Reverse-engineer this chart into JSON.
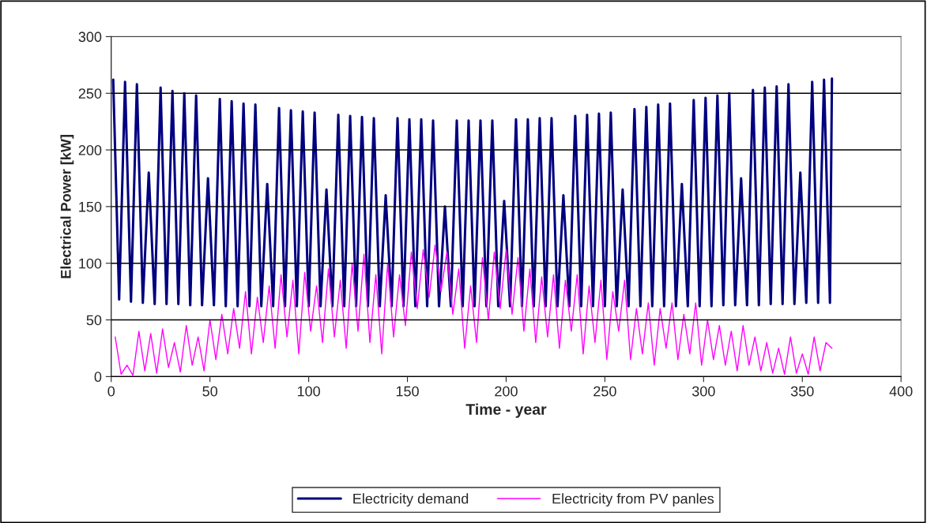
{
  "chart_data": {
    "type": "line",
    "xlabel": "Time - year",
    "ylabel": "Electrical Power [kW]",
    "xlim": [
      0,
      400
    ],
    "xticks": [
      0,
      50,
      100,
      150,
      200,
      250,
      300,
      350,
      400
    ],
    "ylim": [
      0,
      300
    ],
    "yticks": [
      0,
      50,
      100,
      150,
      200,
      250,
      300
    ],
    "grid": "y",
    "legend": "bottom",
    "marker": "none",
    "line_style": "solid",
    "series": [
      {
        "name": "Electricity demand",
        "color": "#000080",
        "x": [
          1,
          4,
          7,
          10,
          13,
          16,
          19,
          22,
          25,
          28,
          31,
          34,
          37,
          40,
          43,
          46,
          49,
          52,
          55,
          58,
          61,
          64,
          67,
          70,
          73,
          76,
          79,
          82,
          85,
          88,
          91,
          94,
          97,
          100,
          103,
          106,
          109,
          112,
          115,
          118,
          121,
          124,
          127,
          130,
          133,
          136,
          139,
          142,
          145,
          148,
          151,
          154,
          157,
          160,
          163,
          166,
          169,
          172,
          175,
          178,
          181,
          184,
          187,
          190,
          193,
          196,
          199,
          202,
          205,
          208,
          211,
          214,
          217,
          220,
          223,
          226,
          229,
          232,
          235,
          238,
          241,
          244,
          247,
          250,
          253,
          256,
          259,
          262,
          265,
          268,
          271,
          274,
          277,
          280,
          283,
          286,
          289,
          292,
          295,
          298,
          301,
          304,
          307,
          310,
          313,
          316,
          319,
          322,
          325,
          328,
          331,
          334,
          337,
          340,
          343,
          346,
          349,
          352,
          355,
          358,
          361,
          364,
          365
        ],
        "values": [
          262,
          68,
          260,
          66,
          258,
          65,
          180,
          64,
          255,
          64,
          252,
          64,
          250,
          63,
          248,
          63,
          175,
          63,
          245,
          62,
          243,
          62,
          241,
          62,
          240,
          62,
          170,
          62,
          237,
          62,
          235,
          62,
          234,
          62,
          233,
          62,
          165,
          62,
          231,
          62,
          230,
          62,
          229,
          62,
          228,
          62,
          160,
          62,
          228,
          62,
          227,
          62,
          227,
          62,
          226,
          62,
          150,
          62,
          226,
          62,
          226,
          62,
          226,
          62,
          226,
          62,
          155,
          62,
          227,
          62,
          227,
          62,
          228,
          62,
          228,
          62,
          160,
          62,
          230,
          62,
          231,
          62,
          232,
          62,
          233,
          62,
          165,
          62,
          236,
          62,
          238,
          62,
          240,
          62,
          241,
          62,
          170,
          62,
          244,
          62,
          246,
          62,
          248,
          63,
          250,
          63,
          175,
          63,
          253,
          63,
          255,
          64,
          256,
          64,
          258,
          64,
          180,
          65,
          260,
          65,
          262,
          65,
          263
        ]
      },
      {
        "name": "Electricity from PV panles",
        "color": "#ff00ff",
        "x": [
          2,
          5,
          8,
          11,
          14,
          17,
          20,
          23,
          26,
          29,
          32,
          35,
          38,
          41,
          44,
          47,
          50,
          53,
          56,
          59,
          62,
          65,
          68,
          71,
          74,
          77,
          80,
          83,
          86,
          89,
          92,
          95,
          98,
          101,
          104,
          107,
          110,
          113,
          116,
          119,
          122,
          125,
          128,
          131,
          134,
          137,
          140,
          143,
          146,
          149,
          152,
          155,
          158,
          161,
          164,
          167,
          170,
          173,
          176,
          179,
          182,
          185,
          188,
          191,
          194,
          197,
          200,
          203,
          206,
          209,
          212,
          215,
          218,
          221,
          224,
          227,
          230,
          233,
          236,
          239,
          242,
          245,
          248,
          251,
          254,
          257,
          260,
          263,
          266,
          269,
          272,
          275,
          278,
          281,
          284,
          287,
          290,
          293,
          296,
          299,
          302,
          305,
          308,
          311,
          314,
          317,
          320,
          323,
          326,
          329,
          332,
          335,
          338,
          341,
          344,
          347,
          350,
          353,
          356,
          359,
          362,
          365
        ],
        "values": [
          35,
          2,
          10,
          1,
          40,
          5,
          38,
          3,
          42,
          8,
          30,
          4,
          45,
          10,
          35,
          5,
          50,
          15,
          55,
          20,
          60,
          25,
          75,
          20,
          70,
          30,
          80,
          25,
          90,
          35,
          85,
          20,
          92,
          40,
          80,
          30,
          95,
          35,
          85,
          25,
          100,
          40,
          108,
          30,
          90,
          20,
          100,
          35,
          90,
          45,
          110,
          60,
          112,
          70,
          116,
          75,
          110,
          55,
          95,
          25,
          80,
          30,
          105,
          50,
          110,
          60,
          112,
          55,
          105,
          40,
          95,
          30,
          88,
          35,
          90,
          25,
          85,
          40,
          90,
          20,
          80,
          30,
          85,
          15,
          75,
          40,
          85,
          15,
          60,
          20,
          65,
          10,
          60,
          25,
          65,
          15,
          55,
          20,
          65,
          10,
          50,
          15,
          45,
          10,
          40,
          5,
          45,
          10,
          35,
          5,
          30,
          3,
          25,
          2,
          35,
          3,
          20,
          2,
          35,
          5,
          30,
          25
        ]
      }
    ]
  }
}
